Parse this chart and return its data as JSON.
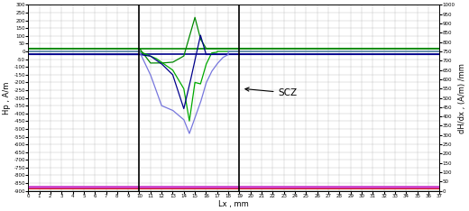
{
  "title": "",
  "xlabel": "Lx , mm",
  "ylabel_left": "Hp , A/m",
  "ylabel_right": "dH/dx , (A/m) /mm",
  "xlim": [
    0,
    37
  ],
  "ylim_left": [
    -900,
    300
  ],
  "ylim_right": [
    0,
    1000
  ],
  "vline1_x": 10,
  "vline2_x": 19,
  "background_color": "#ffffff",
  "grid_color": "#b0b0b0",
  "figsize": [
    5.2,
    2.34
  ],
  "dpi": 100,
  "Hp_green_flat": 20,
  "Hp_blue_flat": -20,
  "flat_red_y": -880,
  "flat_pink_y": -870,
  "flat_black_y": -900
}
